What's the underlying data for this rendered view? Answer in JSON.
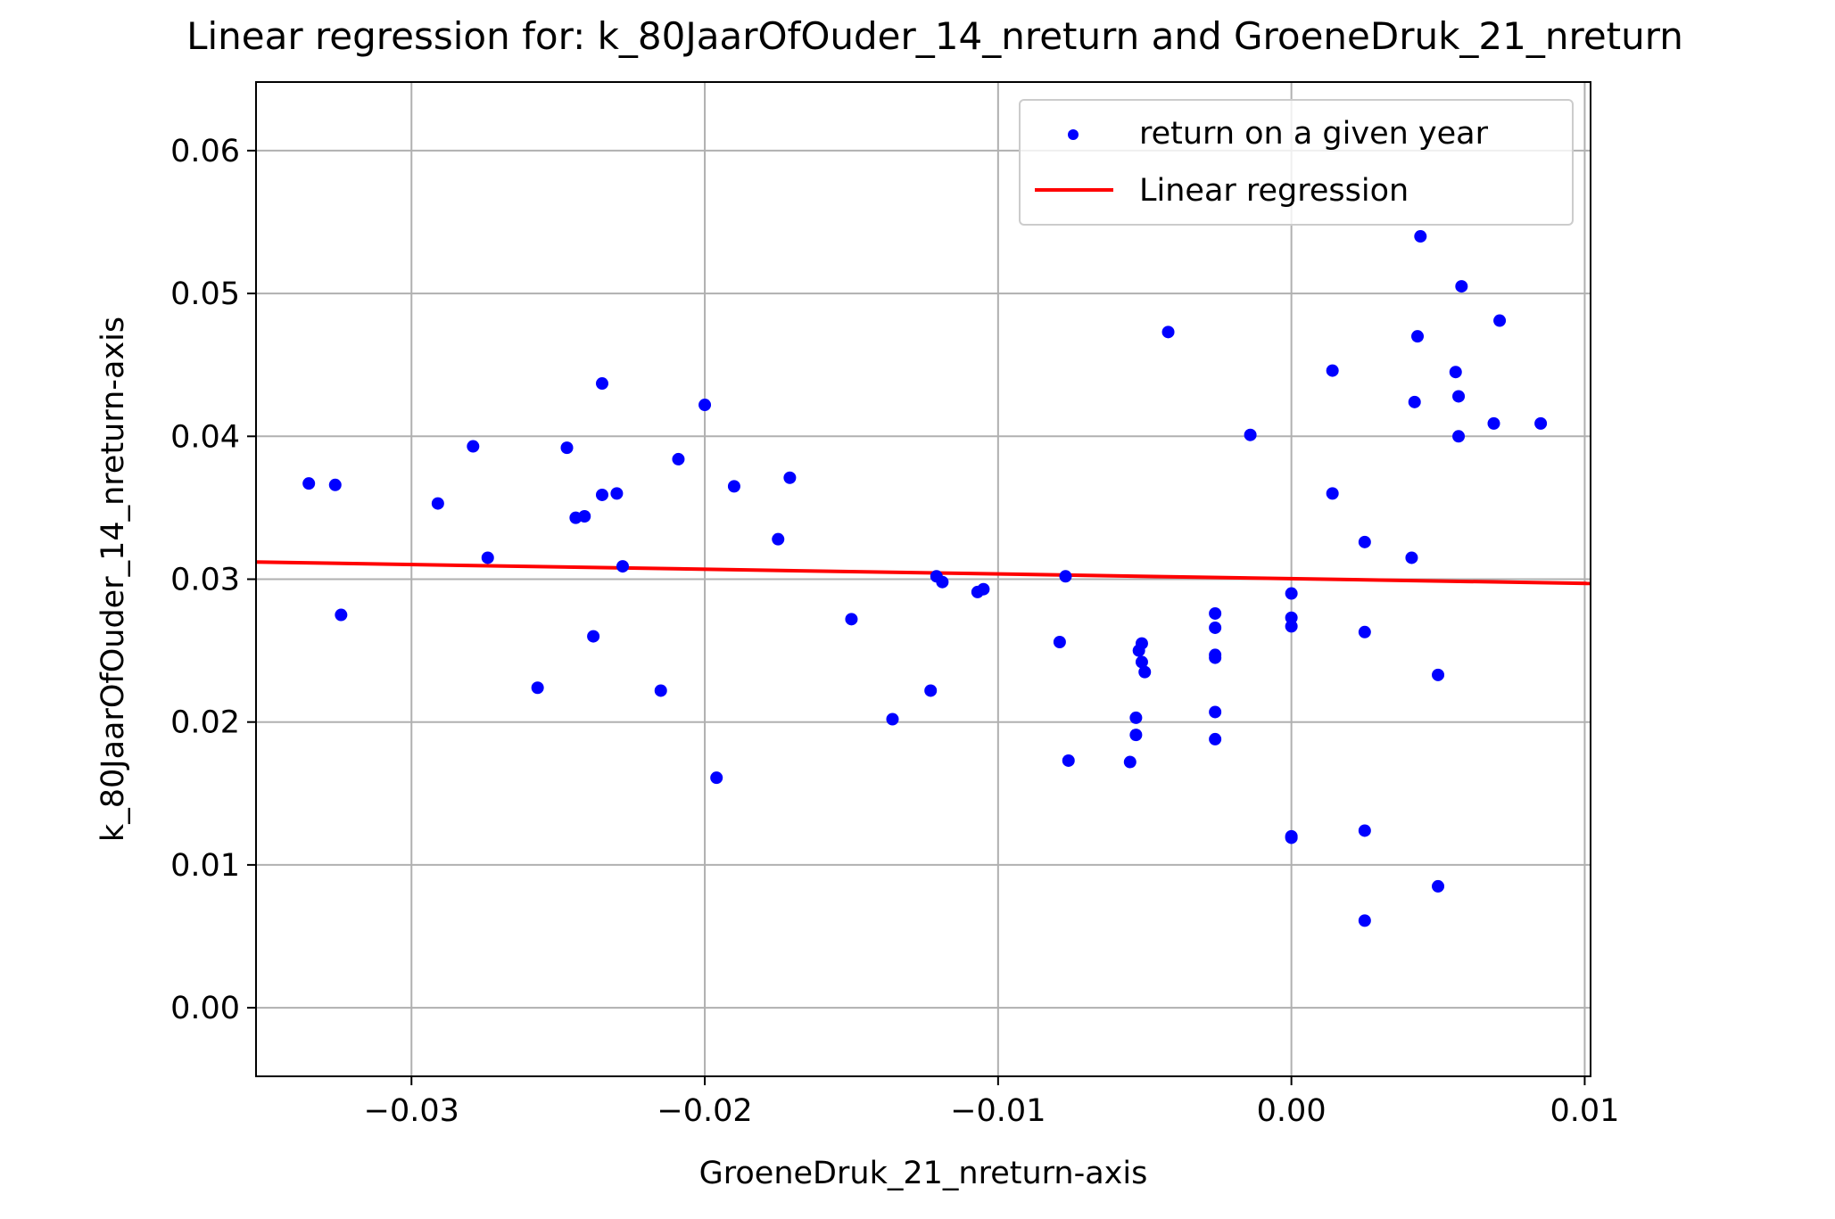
{
  "chart_data": {
    "type": "scatter",
    "title": "Linear regression for: k_80JaarOfOuder_14_nreturn and GroeneDruk_21_nreturn",
    "xlabel": "GroeneDruk_21_nreturn-axis",
    "ylabel": "k_80JaarOfOuder_14_nreturn-axis",
    "xlim": [
      -0.0353,
      0.0102
    ],
    "ylim": [
      -0.0048,
      0.0648
    ],
    "xticks": [
      -0.03,
      -0.02,
      -0.01,
      0.0,
      0.01
    ],
    "xtick_labels": [
      "−0.03",
      "−0.02",
      "−0.01",
      "0.00",
      "0.01"
    ],
    "yticks": [
      0.0,
      0.01,
      0.02,
      0.03,
      0.04,
      0.05,
      0.06
    ],
    "ytick_labels": [
      "0.00",
      "0.01",
      "0.02",
      "0.03",
      "0.04",
      "0.05",
      "0.06"
    ],
    "grid": true,
    "legend_position": "top-right",
    "series": [
      {
        "name": "return on a given year",
        "kind": "scatter",
        "color": "#0000ff",
        "points": [
          [
            -0.0335,
            0.0367
          ],
          [
            -0.0326,
            0.0366
          ],
          [
            -0.0324,
            0.0275
          ],
          [
            -0.0291,
            0.0353
          ],
          [
            -0.0279,
            0.0393
          ],
          [
            -0.0274,
            0.0315
          ],
          [
            -0.0257,
            0.0224
          ],
          [
            -0.0247,
            0.0392
          ],
          [
            -0.0244,
            0.0343
          ],
          [
            -0.0241,
            0.0344
          ],
          [
            -0.0238,
            0.026
          ],
          [
            -0.0235,
            0.0437
          ],
          [
            -0.0235,
            0.0359
          ],
          [
            -0.023,
            0.036
          ],
          [
            -0.0228,
            0.0309
          ],
          [
            -0.0215,
            0.0222
          ],
          [
            -0.0209,
            0.0384
          ],
          [
            -0.02,
            0.0422
          ],
          [
            -0.0196,
            0.0161
          ],
          [
            -0.019,
            0.0365
          ],
          [
            -0.0175,
            0.0328
          ],
          [
            -0.0171,
            0.0371
          ],
          [
            -0.015,
            0.0272
          ],
          [
            -0.0136,
            0.0202
          ],
          [
            -0.0123,
            0.0222
          ],
          [
            -0.0121,
            0.0302
          ],
          [
            -0.0119,
            0.0298
          ],
          [
            -0.0107,
            0.0291
          ],
          [
            -0.0105,
            0.0293
          ],
          [
            -0.0079,
            0.0256
          ],
          [
            -0.0077,
            0.0302
          ],
          [
            -0.0076,
            0.0173
          ],
          [
            -0.0055,
            0.0172
          ],
          [
            -0.0053,
            0.0191
          ],
          [
            -0.0053,
            0.0203
          ],
          [
            -0.0052,
            0.025
          ],
          [
            -0.0051,
            0.0255
          ],
          [
            -0.0051,
            0.0242
          ],
          [
            -0.005,
            0.0235
          ],
          [
            -0.0042,
            0.0473
          ],
          [
            -0.0026,
            0.0276
          ],
          [
            -0.0026,
            0.0266
          ],
          [
            -0.0026,
            0.0247
          ],
          [
            -0.0026,
            0.0245
          ],
          [
            -0.0026,
            0.0207
          ],
          [
            -0.0026,
            0.0188
          ],
          [
            -0.0014,
            0.0401
          ],
          [
            0.0,
            0.029
          ],
          [
            0.0,
            0.0273
          ],
          [
            0.0,
            0.0267
          ],
          [
            0.0,
            0.012
          ],
          [
            0.0,
            0.0119
          ],
          [
            0.0014,
            0.0446
          ],
          [
            0.0014,
            0.036
          ],
          [
            0.0025,
            0.0326
          ],
          [
            0.0025,
            0.0263
          ],
          [
            0.0025,
            0.0124
          ],
          [
            0.0025,
            0.0061
          ],
          [
            0.0041,
            0.0315
          ],
          [
            0.0042,
            0.0424
          ],
          [
            0.0043,
            0.047
          ],
          [
            0.0044,
            0.054
          ],
          [
            0.005,
            0.0233
          ],
          [
            0.005,
            0.0085
          ],
          [
            0.0056,
            0.0445
          ],
          [
            0.0057,
            0.0428
          ],
          [
            0.0057,
            0.04
          ],
          [
            0.0058,
            0.0505
          ],
          [
            0.0069,
            0.0409
          ],
          [
            0.0071,
            0.0481
          ],
          [
            0.0085,
            0.0409
          ]
        ]
      },
      {
        "name": "Linear regression",
        "kind": "line",
        "color": "#ff0000",
        "points": [
          [
            -0.0353,
            0.0312
          ],
          [
            0.0102,
            0.0297
          ]
        ]
      }
    ]
  }
}
